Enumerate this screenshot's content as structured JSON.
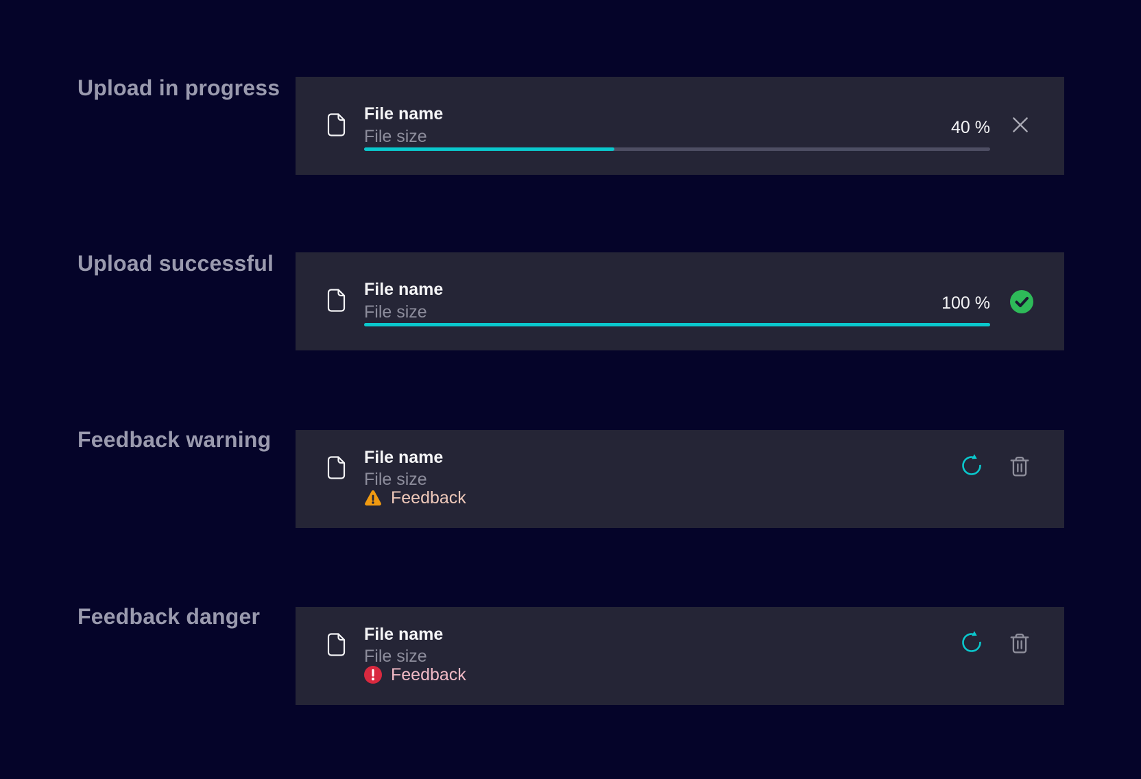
{
  "colors": {
    "page_bg": "#050429",
    "card_bg": "#252536",
    "label_text": "#9A9AAE",
    "file_name_text": "#F4F4F6",
    "file_size_text": "#8D8D9C",
    "progress_fill": "#0AC8CD",
    "progress_track": "#4E4E63",
    "close_icon": "#A9A9B4",
    "success_green": "#2EBA59",
    "check_stroke": "#191930",
    "refresh_teal": "#0AC8CD",
    "trash_gray": "#8F8F9C",
    "warning_orange": "#F09A11",
    "warning_text": "#EFC9BA",
    "danger_red": "#D9293F",
    "danger_text": "#F2BAC6"
  },
  "sections": [
    {
      "label": "Upload in progress",
      "state": "progress",
      "file_name": "File name",
      "file_size": "File size",
      "progress_percent": 40,
      "progress_label": "40 %",
      "icons": [
        "file-icon",
        "close-icon"
      ]
    },
    {
      "label": "Upload successful",
      "state": "success",
      "file_name": "File name",
      "file_size": "File size",
      "progress_percent": 100,
      "progress_label": "100 %",
      "icons": [
        "file-icon",
        "success-check-icon"
      ]
    },
    {
      "label": "Feedback warning",
      "state": "warning",
      "file_name": "File name",
      "file_size": "File size",
      "feedback_label": "Feedback",
      "icons": [
        "file-icon",
        "warning-triangle-icon",
        "refresh-icon",
        "trash-icon"
      ]
    },
    {
      "label": "Feedback danger",
      "state": "danger",
      "file_name": "File name",
      "file_size": "File size",
      "feedback_label": "Feedback",
      "icons": [
        "file-icon",
        "danger-circle-icon",
        "refresh-icon",
        "trash-icon"
      ]
    }
  ]
}
